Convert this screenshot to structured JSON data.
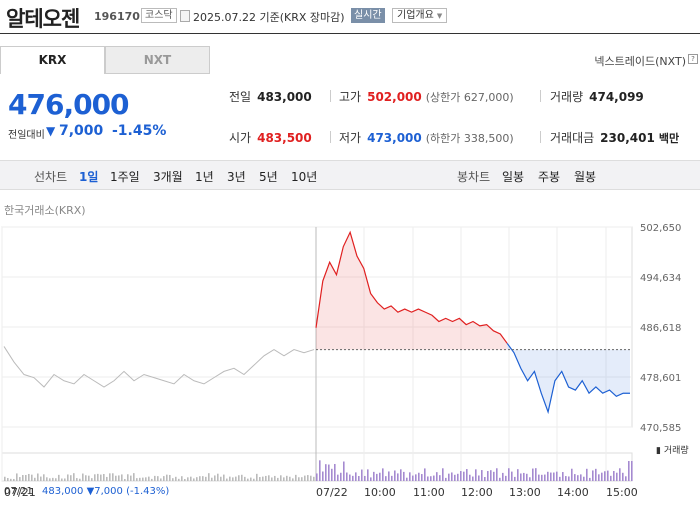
{
  "header": {
    "stock_name": "알테오젠",
    "stock_code": "196170",
    "market": "코스닥",
    "date_text": "2025.07.22 기준(KRX 장마감)",
    "realtime_label": "실시간",
    "company_overview_label": "기업개요",
    "dropdown_icon": "chevron-down-icon"
  },
  "tabs": [
    {
      "label": "KRX",
      "active": true
    },
    {
      "label": "NXT",
      "active": false
    }
  ],
  "nxt_link_label": "넥스트레이드(NXT)",
  "current": {
    "price": "476,000",
    "change_label": "전일대비",
    "change_arrow": "▼",
    "change_value": "7,000",
    "change_percent": "-1.45%",
    "color": "#1d60d3"
  },
  "quotes": {
    "prev_close": {
      "label": "전일",
      "value": "483,000"
    },
    "high": {
      "label": "고가",
      "value": "502,000",
      "sub": "(상한가 627,000)"
    },
    "volume": {
      "label": "거래량",
      "value": "474,099"
    },
    "open": {
      "label": "시가",
      "value": "483,500"
    },
    "low": {
      "label": "저가",
      "value": "473,000",
      "sub": "(하한가 338,500)"
    },
    "trade_value": {
      "label": "거래대금",
      "value": "230,401",
      "unit": "백만"
    }
  },
  "controls": {
    "line_chart_label": "선차트",
    "periods": [
      "1일",
      "1주일",
      "3개월",
      "1년",
      "3년",
      "5년",
      "10년"
    ],
    "active_period": "1일",
    "candle_label": "봉차트",
    "candle_periods": [
      "일봉",
      "주봉",
      "월봉"
    ]
  },
  "chart_data": {
    "type": "line",
    "title": "한국거래소(KRX)",
    "y_ticks": [
      "502,650",
      "494,634",
      "486,618",
      "478,601",
      "470,585"
    ],
    "ylim": [
      470585,
      502650
    ],
    "prev_close": 483000,
    "volume_label": "거래량",
    "x_labels": [
      "07/21",
      "07/22",
      "10:00",
      "11:00",
      "12:00",
      "13:00",
      "14:00",
      "15:00"
    ],
    "prev_day_series": [
      483500,
      481000,
      479000,
      478500,
      477000,
      479000,
      478000,
      477500,
      479000,
      478000,
      477000,
      478000,
      479500,
      478000,
      479000,
      478500,
      478000,
      477500,
      479000,
      478000,
      477500,
      478500,
      479500,
      480000,
      479000,
      480500,
      482000,
      483000,
      482000,
      483000,
      482500,
      483000
    ],
    "today_series": [
      486500,
      494000,
      497000,
      495000,
      499500,
      501800,
      498000,
      496000,
      492000,
      490500,
      489500,
      490000,
      489000,
      489500,
      489000,
      489500,
      489000,
      488500,
      487500,
      488000,
      487500,
      488000,
      487000,
      487500,
      486800,
      487000,
      486000,
      485500,
      484000,
      482500,
      480000,
      478000,
      479500,
      476000,
      473000,
      478000,
      479500,
      477000,
      476500,
      478000,
      476000,
      477000,
      476000,
      476500,
      475500,
      476000,
      476000
    ],
    "colors": {
      "up": "#e02020",
      "down": "#1d60d3",
      "prev_day": "#bbbbbb"
    }
  },
  "footer": {
    "prev_date": "07/21",
    "prev_price": "483,000",
    "prev_arrow": "▼",
    "prev_change": "7,000",
    "prev_pct": "(-1.43%)"
  }
}
